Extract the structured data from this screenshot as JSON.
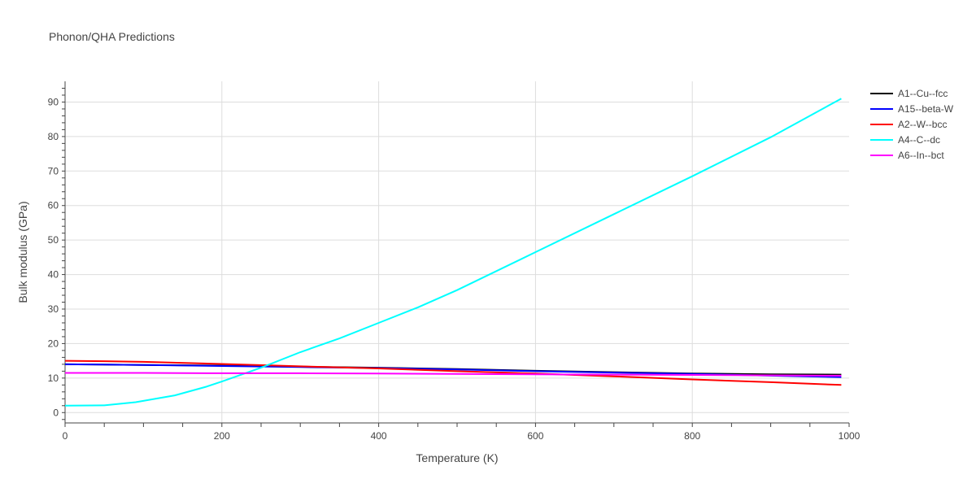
{
  "chart_data": {
    "type": "line",
    "title": "Phonon/QHA Predictions",
    "xlabel": "Temperature (K)",
    "ylabel": "Bulk modulus (GPa)",
    "xlim": [
      0,
      1000
    ],
    "ylim": [
      -3,
      96
    ],
    "x_ticks": [
      0,
      200,
      400,
      600,
      800,
      1000
    ],
    "y_ticks": [
      0,
      10,
      20,
      30,
      40,
      50,
      60,
      70,
      80,
      90
    ],
    "grid": true,
    "legend_position": "top-right",
    "series": [
      {
        "name": "A1--Cu--fcc",
        "color": "#000000",
        "x": [
          0,
          100,
          200,
          300,
          400,
          500,
          600,
          700,
          800,
          900,
          990
        ],
        "y": [
          14.0,
          13.8,
          13.6,
          13.3,
          13.0,
          12.6,
          12.1,
          11.7,
          11.3,
          11.1,
          11.0
        ]
      },
      {
        "name": "A15--beta-W",
        "color": "#0000ff",
        "x": [
          0,
          100,
          200,
          300,
          400,
          500,
          600,
          700,
          800,
          900,
          990
        ],
        "y": [
          14.0,
          13.8,
          13.5,
          13.2,
          12.9,
          12.5,
          12.0,
          11.6,
          11.2,
          10.7,
          10.3
        ]
      },
      {
        "name": "A2--W--bcc",
        "color": "#ff0000",
        "x": [
          0,
          50,
          100,
          200,
          300,
          400,
          500,
          600,
          700,
          800,
          900,
          990
        ],
        "y": [
          15.0,
          14.9,
          14.7,
          14.1,
          13.4,
          12.8,
          12.0,
          11.3,
          10.5,
          9.6,
          8.8,
          8.0
        ]
      },
      {
        "name": "A4--C--dc",
        "color": "#00ffff",
        "x": [
          0,
          50,
          90,
          140,
          180,
          200,
          250,
          300,
          350,
          400,
          450,
          500,
          600,
          700,
          800,
          900,
          990
        ],
        "y": [
          2.0,
          2.1,
          3.0,
          5.0,
          7.5,
          9.0,
          13.0,
          17.5,
          21.5,
          26.0,
          30.5,
          35.5,
          46.5,
          57.5,
          68.5,
          79.8,
          91.0
        ]
      },
      {
        "name": "A6--In--bct",
        "color": "#ff00ff",
        "x": [
          0,
          100,
          200,
          300,
          400,
          500,
          600,
          700,
          800,
          900,
          990
        ],
        "y": [
          11.5,
          11.5,
          11.4,
          11.4,
          11.3,
          11.2,
          11.1,
          11.0,
          10.9,
          10.8,
          10.7
        ]
      }
    ]
  }
}
